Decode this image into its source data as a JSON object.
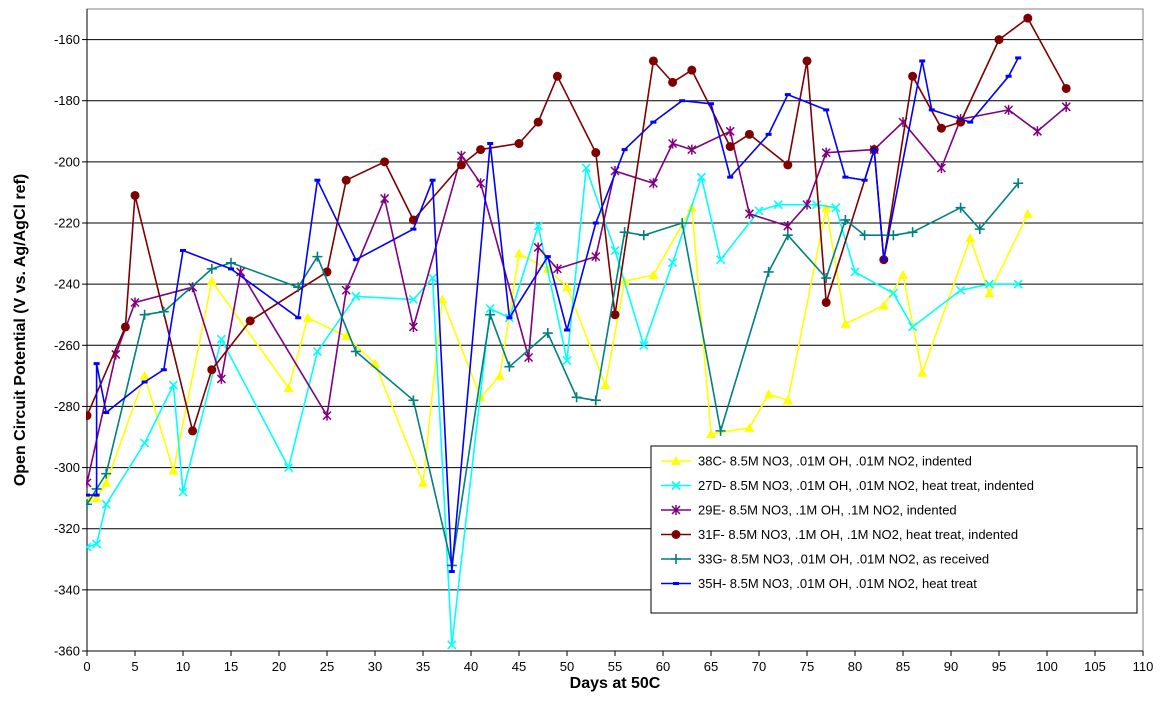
{
  "chart_data": {
    "type": "line",
    "title": "",
    "xlabel": "Days at 50C",
    "ylabel": "Open Circuit Potential (V vs. Ag/AgCl ref)",
    "xlim": [
      0,
      110
    ],
    "ylim": [
      -360,
      -150
    ],
    "x_ticks": [
      "0",
      "5",
      "10",
      "15",
      "20",
      "25",
      "30",
      "35",
      "40",
      "45",
      "50",
      "55",
      "60",
      "65",
      "70",
      "75",
      "80",
      "85",
      "90",
      "95",
      "100",
      "105",
      "110"
    ],
    "y_ticks": [
      "-160",
      "-180",
      "-200",
      "-220",
      "-240",
      "-260",
      "-280",
      "-300",
      "-320",
      "-340",
      "-360"
    ],
    "grid": "horizontal",
    "legend_position": "bottom-right",
    "series": [
      {
        "name": "38C- 8.5M NO3, .01M OH, .01M NO2, indented",
        "color": "#FFFF00",
        "marker": "triangle",
        "points": [
          [
            0,
            -310
          ],
          [
            1,
            -310
          ],
          [
            2,
            -305
          ],
          [
            6,
            -270
          ],
          [
            9,
            -301
          ],
          [
            13,
            -239
          ],
          [
            21,
            -274
          ],
          [
            23,
            -251
          ],
          [
            27,
            -257
          ],
          [
            30,
            -266
          ],
          [
            35,
            -305
          ],
          [
            37,
            -245
          ],
          [
            41,
            -277
          ],
          [
            43,
            -270
          ],
          [
            45,
            -230
          ],
          [
            48,
            -235
          ],
          [
            50,
            -241
          ],
          [
            54,
            -273
          ],
          [
            56,
            -239
          ],
          [
            59,
            -237
          ],
          [
            63,
            -215
          ],
          [
            65,
            -289
          ],
          [
            69,
            -287
          ],
          [
            71,
            -276
          ],
          [
            73,
            -278
          ],
          [
            77,
            -215
          ],
          [
            79,
            -253
          ],
          [
            83,
            -247
          ],
          [
            85,
            -237
          ],
          [
            87,
            -269
          ],
          [
            92,
            -225
          ],
          [
            94,
            -243
          ],
          [
            98,
            -217
          ]
        ]
      },
      {
        "name": "27D- 8.5M NO3, .01M OH, .01M NO2, heat treat, indented",
        "color": "#00FFFF",
        "marker": "x",
        "points": [
          [
            0,
            -326
          ],
          [
            1,
            -325
          ],
          [
            2,
            -312
          ],
          [
            6,
            -292
          ],
          [
            9,
            -273
          ],
          [
            10,
            -308
          ],
          [
            14,
            -258
          ],
          [
            21,
            -300
          ],
          [
            24,
            -262
          ],
          [
            28,
            -244
          ],
          [
            34,
            -245
          ],
          [
            36,
            -238
          ],
          [
            38,
            -358
          ],
          [
            42,
            -248
          ],
          [
            44,
            -251
          ],
          [
            47,
            -221
          ],
          [
            50,
            -265
          ],
          [
            52,
            -202
          ],
          [
            55,
            -229
          ],
          [
            58,
            -260
          ],
          [
            61,
            -233
          ],
          [
            64,
            -205
          ],
          [
            66,
            -232
          ],
          [
            70,
            -216
          ],
          [
            72,
            -214
          ],
          [
            76,
            -214
          ],
          [
            78,
            -215
          ],
          [
            80,
            -236
          ],
          [
            84,
            -243
          ],
          [
            86,
            -254
          ],
          [
            91,
            -242
          ],
          [
            94,
            -240
          ],
          [
            97,
            -240
          ]
        ]
      },
      {
        "name": "29E- 8.5M NO3, .1M OH, .1M NO2, indented",
        "color": "#800080",
        "marker": "star",
        "points": [
          [
            0,
            -305
          ],
          [
            3,
            -263
          ],
          [
            5,
            -246
          ],
          [
            11,
            -241
          ],
          [
            14,
            -271
          ],
          [
            16,
            -236
          ],
          [
            25,
            -283
          ],
          [
            27,
            -242
          ],
          [
            31,
            -212
          ],
          [
            34,
            -254
          ],
          [
            39,
            -198
          ],
          [
            41,
            -207
          ],
          [
            46,
            -264
          ],
          [
            47,
            -228
          ],
          [
            49,
            -235
          ],
          [
            53,
            -231
          ],
          [
            55,
            -203
          ],
          [
            59,
            -207
          ],
          [
            61,
            -194
          ],
          [
            63,
            -196
          ],
          [
            67,
            -190
          ],
          [
            69,
            -217
          ],
          [
            73,
            -221
          ],
          [
            75,
            -214
          ],
          [
            77,
            -197
          ],
          [
            82,
            -196
          ],
          [
            85,
            -187
          ],
          [
            89,
            -202
          ],
          [
            91,
            -186
          ],
          [
            96,
            -183
          ],
          [
            99,
            -190
          ],
          [
            102,
            -182
          ]
        ]
      },
      {
        "name": "31F- 8.5M NO3, .1M OH, .1M NO2, heat treat, indented",
        "color": "#800000",
        "marker": "circle",
        "points": [
          [
            0,
            -283
          ],
          [
            4,
            -254
          ],
          [
            5,
            -211
          ],
          [
            11,
            -288
          ],
          [
            13,
            -268
          ],
          [
            17,
            -252
          ],
          [
            25,
            -236
          ],
          [
            27,
            -206
          ],
          [
            31,
            -200
          ],
          [
            34,
            -219
          ],
          [
            39,
            -201
          ],
          [
            41,
            -196
          ],
          [
            45,
            -194
          ],
          [
            47,
            -187
          ],
          [
            49,
            -172
          ],
          [
            53,
            -197
          ],
          [
            55,
            -250
          ],
          [
            59,
            -167
          ],
          [
            61,
            -174
          ],
          [
            63,
            -170
          ],
          [
            67,
            -195
          ],
          [
            69,
            -191
          ],
          [
            73,
            -201
          ],
          [
            75,
            -167
          ],
          [
            77,
            -246
          ],
          [
            82,
            -196
          ],
          [
            83,
            -232
          ],
          [
            86,
            -172
          ],
          [
            89,
            -189
          ],
          [
            91,
            -187
          ],
          [
            95,
            -160
          ],
          [
            98,
            -153
          ],
          [
            102,
            -176
          ]
        ]
      },
      {
        "name": "33G- 8.5M NO3, .01M OH, .01M NO2, as received",
        "color": "#008080",
        "marker": "plus",
        "points": [
          [
            0,
            -312
          ],
          [
            1,
            -307
          ],
          [
            2,
            -302
          ],
          [
            6,
            -250
          ],
          [
            8,
            -249
          ],
          [
            13,
            -235
          ],
          [
            15,
            -233
          ],
          [
            22,
            -241
          ],
          [
            24,
            -231
          ],
          [
            28,
            -262
          ],
          [
            34,
            -278
          ],
          [
            38,
            -332
          ],
          [
            42,
            -250
          ],
          [
            44,
            -267
          ],
          [
            48,
            -256
          ],
          [
            51,
            -277
          ],
          [
            53,
            -278
          ],
          [
            56,
            -223
          ],
          [
            58,
            -224
          ],
          [
            62,
            -220
          ],
          [
            66,
            -288
          ],
          [
            71,
            -236
          ],
          [
            73,
            -224
          ],
          [
            77,
            -238
          ],
          [
            79,
            -219
          ],
          [
            81,
            -224
          ],
          [
            84,
            -224
          ],
          [
            86,
            -223
          ],
          [
            91,
            -215
          ],
          [
            93,
            -222
          ],
          [
            97,
            -207
          ]
        ]
      },
      {
        "name": "35H- 8.5M NO3, .01M OH, .01M NO2, heat treat",
        "color": "#0000FF",
        "marker": "dash",
        "points": [
          [
            0,
            -309
          ],
          [
            1,
            -309
          ],
          [
            1,
            -266
          ],
          [
            2,
            -282
          ],
          [
            6,
            -272
          ],
          [
            8,
            -268
          ],
          [
            10,
            -229
          ],
          [
            15,
            -235
          ],
          [
            22,
            -251
          ],
          [
            24,
            -206
          ],
          [
            28,
            -232
          ],
          [
            34,
            -222
          ],
          [
            36,
            -206
          ],
          [
            38,
            -334
          ],
          [
            42,
            -194
          ],
          [
            44,
            -251
          ],
          [
            48,
            -231
          ],
          [
            50,
            -255
          ],
          [
            53,
            -220
          ],
          [
            56,
            -196
          ],
          [
            59,
            -187
          ],
          [
            62,
            -180
          ],
          [
            65,
            -181
          ],
          [
            67,
            -205
          ],
          [
            71,
            -191
          ],
          [
            73,
            -178
          ],
          [
            77,
            -183
          ],
          [
            79,
            -205
          ],
          [
            81,
            -206
          ],
          [
            82,
            -196
          ],
          [
            83,
            -232
          ],
          [
            87,
            -167
          ],
          [
            88,
            -183
          ],
          [
            92,
            -187
          ],
          [
            96,
            -172
          ],
          [
            97,
            -166
          ]
        ]
      }
    ]
  }
}
